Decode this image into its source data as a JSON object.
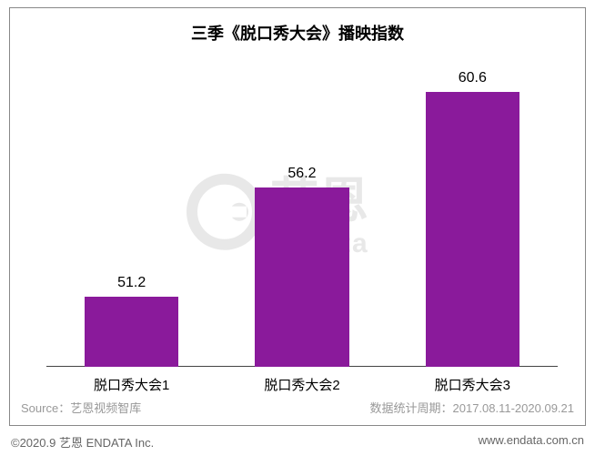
{
  "chart": {
    "type": "bar",
    "title": "三季《脱口秀大会》播映指数",
    "title_fontsize": 18,
    "title_fontweight": "bold",
    "categories": [
      "脱口秀大会1",
      "脱口秀大会2",
      "脱口秀大会3"
    ],
    "values": [
      51.2,
      56.2,
      60.6
    ],
    "value_labels": [
      "51.2",
      "56.2",
      "60.6"
    ],
    "value_label_fontsize": 16,
    "category_label_fontsize": 15,
    "bar_color": "#8a1a9b",
    "bar_width_ratio": 0.55,
    "baseline_value": 48,
    "y_max": 62,
    "background_color": "#ffffff",
    "frame_border_color": "#888888",
    "baseline_color": "#444444"
  },
  "watermark": {
    "text_top": "艺恩",
    "text_bottom": "endata",
    "color": "#e8e8e8"
  },
  "source": {
    "left_label": "Source：艺恩视频智库",
    "right_label": "数据统计周期：2017.08.11-2020.09.21",
    "fontsize": 13,
    "color": "#999999"
  },
  "footer": {
    "copyright": "©2020.9 艺恩 ENDATA Inc.",
    "url": "www.endata.com.cn",
    "fontsize": 13,
    "color": "#666666"
  }
}
